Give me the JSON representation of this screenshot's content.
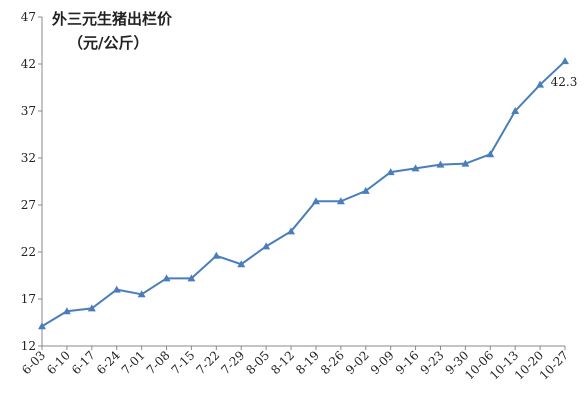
{
  "chart_data": {
    "type": "line",
    "title": "外三元生猪出栏价",
    "subtitle": "（元/公斤）",
    "categories": [
      "6-03",
      "6-10",
      "6-17",
      "6-24",
      "7-01",
      "7-08",
      "7-15",
      "7-22",
      "7-29",
      "8-05",
      "8-12",
      "8-19",
      "8-26",
      "9-02",
      "9-09",
      "9-16",
      "9-23",
      "9-30",
      "10-06",
      "10-13",
      "10-20",
      "10-27"
    ],
    "series": [
      {
        "name": "外三元生猪出栏价",
        "color": "#4a7ebb",
        "values": [
          14.1,
          15.7,
          16.0,
          18.0,
          17.5,
          19.2,
          19.2,
          21.6,
          20.7,
          22.6,
          24.2,
          27.4,
          27.4,
          28.5,
          30.5,
          30.9,
          31.3,
          31.4,
          32.4,
          37.0,
          39.8,
          42.3
        ],
        "value_labels": [
          null,
          null,
          null,
          null,
          null,
          null,
          null,
          null,
          null,
          null,
          null,
          null,
          null,
          null,
          null,
          null,
          null,
          null,
          null,
          null,
          null,
          "42.3"
        ]
      }
    ],
    "ylim": [
      12,
      47
    ],
    "yticks": [
      12,
      17,
      22,
      27,
      32,
      37,
      42,
      47
    ],
    "grid": false
  }
}
